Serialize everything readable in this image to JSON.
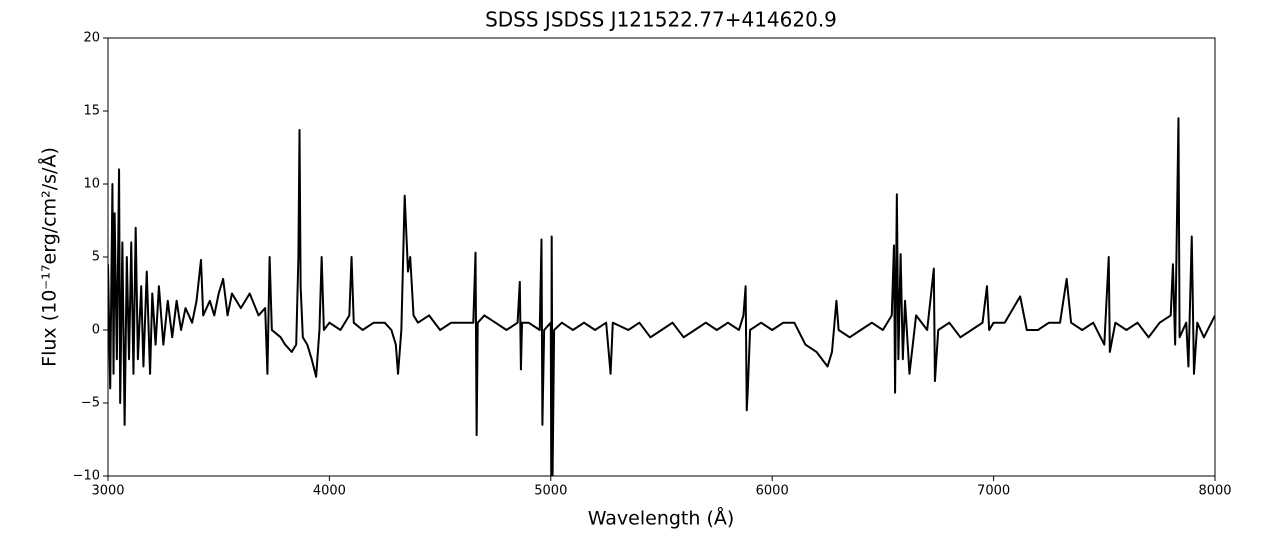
{
  "chart_data": {
    "type": "line",
    "title": "SDSS JSDSS J121522.77+414620.9",
    "x_label": "Wavelength (Å)",
    "y_label": "Flux (10⁻¹⁷erg/cm²/s/Å)",
    "xlim": [
      3000,
      8000
    ],
    "ylim": [
      -10,
      20
    ],
    "xticks": [
      3000,
      4000,
      5000,
      6000,
      7000,
      8000
    ],
    "yticks": [
      {
        "value": -10,
        "label": "−10"
      },
      {
        "value": -5,
        "label": "−5"
      },
      0,
      5,
      10,
      15,
      20
    ],
    "grid": false,
    "series": [
      {
        "color": "#000000",
        "x": [
          3000,
          3010,
          3020,
          3025,
          3030,
          3040,
          3050,
          3055,
          3065,
          3075,
          3085,
          3095,
          3105,
          3115,
          3125,
          3135,
          3150,
          3160,
          3175,
          3190,
          3200,
          3215,
          3230,
          3250,
          3270,
          3290,
          3310,
          3330,
          3350,
          3380,
          3400,
          3420,
          3430,
          3460,
          3480,
          3500,
          3520,
          3540,
          3560,
          3600,
          3640,
          3680,
          3710,
          3720,
          3730,
          3740,
          3780,
          3800,
          3830,
          3850,
          3860,
          3865,
          3870,
          3880,
          3900,
          3920,
          3940,
          3955,
          3965,
          3975,
          4000,
          4050,
          4090,
          4100,
          4110,
          4150,
          4200,
          4250,
          4280,
          4300,
          4310,
          4325,
          4340,
          4355,
          4365,
          4380,
          4400,
          4450,
          4500,
          4550,
          4600,
          4650,
          4660,
          4665,
          4670,
          4700,
          4750,
          4800,
          4850,
          4860,
          4865,
          4870,
          4900,
          4950,
          4958,
          4962,
          4970,
          5000,
          5002,
          5004,
          5008,
          5015,
          5050,
          5100,
          5150,
          5200,
          5250,
          5270,
          5280,
          5350,
          5400,
          5450,
          5500,
          5550,
          5600,
          5650,
          5700,
          5750,
          5800,
          5850,
          5870,
          5880,
          5885,
          5890,
          5900,
          5950,
          6000,
          6050,
          6100,
          6150,
          6200,
          6250,
          6270,
          6290,
          6300,
          6350,
          6400,
          6450,
          6500,
          6540,
          6550,
          6555,
          6563,
          6570,
          6580,
          6590,
          6600,
          6620,
          6650,
          6700,
          6730,
          6735,
          6750,
          6800,
          6850,
          6900,
          6950,
          6970,
          6980,
          7000,
          7050,
          7120,
          7150,
          7200,
          7250,
          7300,
          7330,
          7350,
          7400,
          7450,
          7500,
          7520,
          7525,
          7550,
          7600,
          7650,
          7700,
          7750,
          7800,
          7810,
          7820,
          7835,
          7840,
          7870,
          7880,
          7895,
          7905,
          7920,
          7950,
          8000
        ],
        "values": [
          4.5,
          -4,
          10,
          -3,
          8,
          -2,
          11,
          -5,
          6,
          -6.5,
          5,
          -2,
          6,
          -3,
          7,
          -2,
          3,
          -2.5,
          4,
          -3,
          2.5,
          -1,
          3,
          -1,
          2,
          -0.5,
          2,
          0,
          1.5,
          0.5,
          2,
          4.8,
          1,
          2,
          1,
          2.5,
          3.5,
          1,
          2.5,
          1.5,
          2.5,
          1,
          1.5,
          -3,
          5,
          0,
          -0.5,
          -1,
          -1.5,
          -1,
          5,
          13.7,
          3,
          -0.5,
          -1,
          -2,
          -3.2,
          0,
          5,
          0,
          0.5,
          0,
          1,
          5,
          0.5,
          0,
          0.5,
          0.5,
          0,
          -1,
          -3,
          0,
          9.2,
          4,
          5,
          1,
          0.5,
          1,
          0,
          0.5,
          0.5,
          0.5,
          5.3,
          -7.2,
          0.5,
          1,
          0.5,
          0,
          0.5,
          3.3,
          -2.7,
          0.5,
          0.5,
          0,
          6.2,
          -6.5,
          0,
          0.5,
          -10,
          6.4,
          -10,
          0,
          0.5,
          0,
          0.5,
          0,
          0.5,
          -3,
          0.5,
          0,
          0.5,
          -0.5,
          0,
          0.5,
          -0.5,
          0,
          0.5,
          0,
          0.5,
          0,
          1,
          3,
          -5.5,
          -4,
          0,
          0.5,
          0,
          0.5,
          0.5,
          -1,
          -1.5,
          -2.5,
          -1.5,
          2,
          0,
          -0.5,
          0,
          0.5,
          0,
          1,
          5.8,
          -4.3,
          9.3,
          -2,
          5.2,
          -2,
          2,
          -3,
          1,
          0,
          4.2,
          -3.5,
          0,
          0.5,
          -0.5,
          0,
          0.5,
          3,
          0,
          0.5,
          0.5,
          2.3,
          0,
          0,
          0.5,
          0.5,
          3.5,
          0.5,
          0,
          0.5,
          -1,
          5,
          -1.5,
          0.5,
          0,
          0.5,
          -0.5,
          0.5,
          1,
          4.5,
          -1,
          14.5,
          -0.5,
          0.5,
          -2.5,
          6.4,
          -3,
          0.5,
          -0.5,
          1
        ]
      }
    ]
  }
}
